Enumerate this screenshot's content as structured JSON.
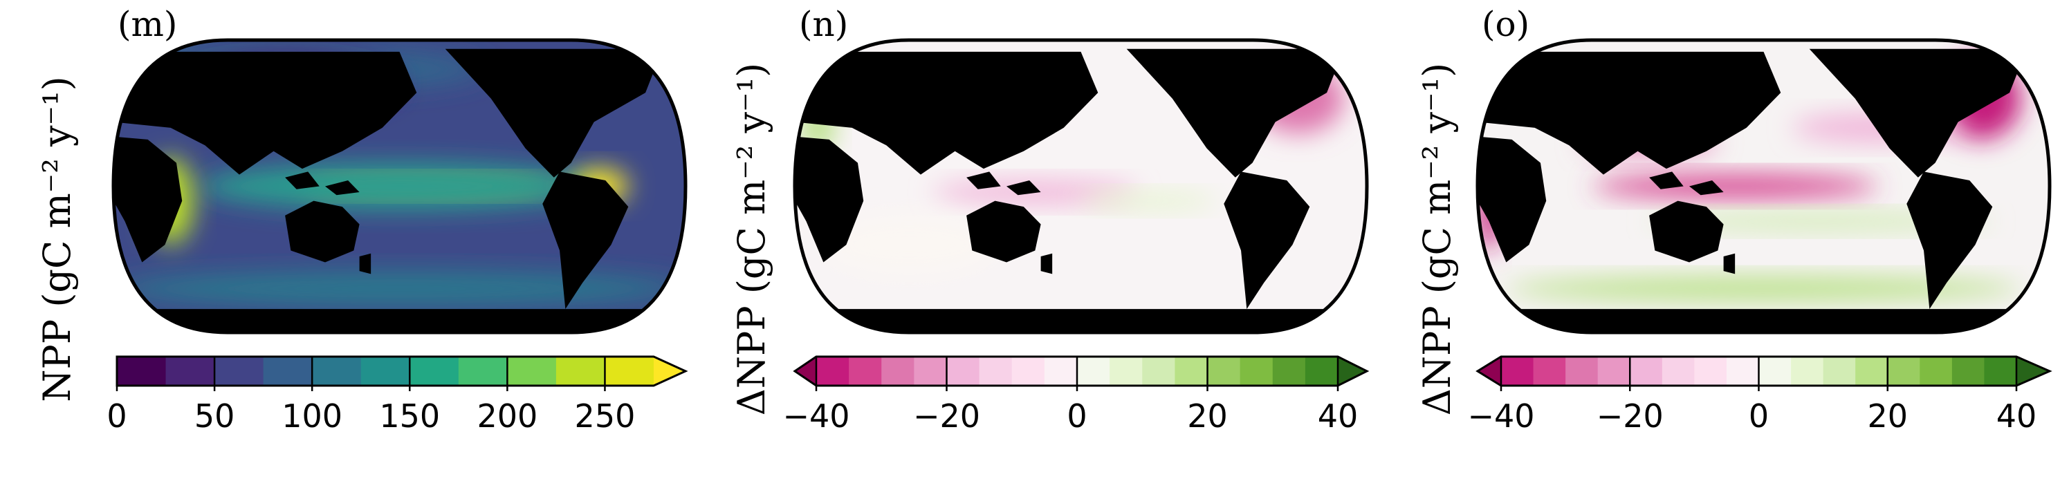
{
  "panels": [
    {
      "label": "(m)",
      "ylabel": "NPP (gC m⁻² y⁻¹)",
      "colorbar": {
        "lim": [
          0,
          275
        ],
        "ticks": [
          0,
          50,
          100,
          150,
          200,
          250
        ],
        "extend": "max",
        "colors": [
          "#440154",
          "#482475",
          "#414487",
          "#355f8d",
          "#2a788e",
          "#21918c",
          "#22a884",
          "#44bf70",
          "#7ad151",
          "#bddf26",
          "#e2e418"
        ],
        "over_color": "#fde725"
      }
    },
    {
      "label": "(n)",
      "ylabel": "ΔNPP (gC m⁻² y⁻¹)",
      "colorbar": {
        "lim": [
          -40,
          40
        ],
        "ticks": [
          {
            "value": -40,
            "label": "−40"
          },
          {
            "value": -20,
            "label": "−20"
          },
          0,
          20,
          40
        ],
        "extend": "both",
        "colors": [
          "#c51b7d",
          "#d5428f",
          "#de77ae",
          "#e897c4",
          "#f1b6da",
          "#f8d2e8",
          "#fde0ef",
          "#fbf0f5",
          "#f3f8ec",
          "#e6f5d0",
          "#d2ecb4",
          "#b8e186",
          "#9acd61",
          "#7fbc41",
          "#5a9e2f",
          "#3d8a23"
        ],
        "under_color": "#8e0152",
        "over_color": "#276419"
      }
    },
    {
      "label": "(o)",
      "ylabel": "ΔNPP (gC m⁻² y⁻¹)",
      "colorbar": {
        "lim": [
          -40,
          40
        ],
        "ticks": [
          {
            "value": -40,
            "label": "−40"
          },
          {
            "value": -20,
            "label": "−20"
          },
          0,
          20,
          40
        ],
        "extend": "both",
        "colors": [
          "#c51b7d",
          "#d5428f",
          "#de77ae",
          "#e897c4",
          "#f1b6da",
          "#f8d2e8",
          "#fde0ef",
          "#fbf0f5",
          "#f3f8ec",
          "#e6f5d0",
          "#d2ecb4",
          "#b8e186",
          "#9acd61",
          "#7fbc41",
          "#5a9e2f",
          "#3d8a23"
        ],
        "under_color": "#8e0152",
        "over_color": "#276419"
      }
    }
  ]
}
